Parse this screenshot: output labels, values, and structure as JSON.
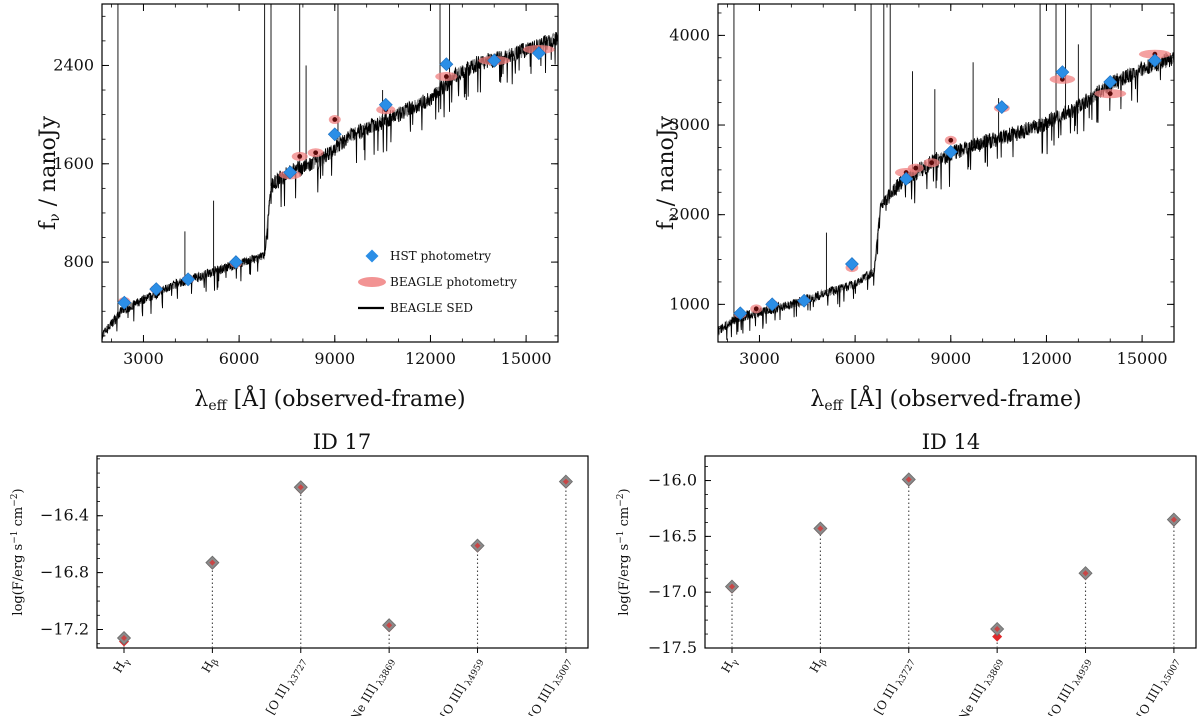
{
  "chart_data": [
    {
      "type": "scatter",
      "panel": "top-left",
      "xlabel": "λ",
      "xlabel_sub": "eff",
      "xlabel_tail": " [Å] (observed-frame)",
      "ylabel": "f",
      "ylabel_sub": "ν",
      "ylabel_tail": " / nanoJy",
      "xlim": [
        1700,
        16000
      ],
      "ylim": [
        150,
        2900
      ],
      "xticks": [
        3000,
        6000,
        9000,
        12000,
        15000
      ],
      "yticks": [
        800,
        1600,
        2400
      ],
      "legend_position": "lower-right",
      "legend": [
        "HST photometry",
        "BEAGLE photometry",
        "BEAGLE SED"
      ],
      "hst_photometry": [
        {
          "x": 2400,
          "y": 470
        },
        {
          "x": 3400,
          "y": 580
        },
        {
          "x": 4400,
          "y": 660
        },
        {
          "x": 5900,
          "y": 800
        },
        {
          "x": 7600,
          "y": 1530
        },
        {
          "x": 9000,
          "y": 1840
        },
        {
          "x": 10600,
          "y": 2080
        },
        {
          "x": 12500,
          "y": 2410
        },
        {
          "x": 14000,
          "y": 2440
        },
        {
          "x": 15400,
          "y": 2500
        }
      ],
      "beagle_photometry": [
        {
          "x": 2400,
          "y": 480,
          "w": 250
        },
        {
          "x": 3400,
          "y": 580,
          "w": 250
        },
        {
          "x": 4400,
          "y": 660,
          "w": 300
        },
        {
          "x": 5900,
          "y": 790,
          "w": 300
        },
        {
          "x": 7600,
          "y": 1510,
          "w": 700
        },
        {
          "x": 7900,
          "y": 1660,
          "w": 500
        },
        {
          "x": 8400,
          "y": 1690,
          "w": 500
        },
        {
          "x": 9000,
          "y": 1960,
          "w": 200
        },
        {
          "x": 10600,
          "y": 2040,
          "w": 600
        },
        {
          "x": 12500,
          "y": 2310,
          "w": 700
        },
        {
          "x": 14000,
          "y": 2440,
          "w": 1000
        },
        {
          "x": 15400,
          "y": 2530,
          "w": 1000
        }
      ],
      "sed": {
        "anchors": [
          [
            1700,
            200
          ],
          [
            2300,
            400
          ],
          [
            4000,
            620
          ],
          [
            6000,
            790
          ],
          [
            6800,
            850
          ],
          [
            7000,
            1420
          ],
          [
            7500,
            1520
          ],
          [
            8500,
            1620
          ],
          [
            9500,
            1830
          ],
          [
            11000,
            2000
          ],
          [
            12000,
            2130
          ],
          [
            12800,
            2320
          ],
          [
            13500,
            2420
          ],
          [
            14500,
            2480
          ],
          [
            16000,
            2620
          ]
        ],
        "lines": [
          [
            2200,
            2900
          ],
          [
            4300,
            1050
          ],
          [
            5200,
            1300
          ],
          [
            6800,
            2900
          ],
          [
            7000,
            2900
          ],
          [
            7900,
            2900
          ],
          [
            8100,
            2400
          ],
          [
            9100,
            2900
          ],
          [
            10500,
            2200
          ],
          [
            12300,
            2900
          ],
          [
            12600,
            2900
          ],
          [
            13000,
            2400
          ]
        ]
      }
    },
    {
      "type": "scatter",
      "panel": "top-right",
      "xlabel": "λ",
      "xlabel_sub": "eff",
      "xlabel_tail": " [Å] (observed-frame)",
      "ylabel": "f",
      "ylabel_sub": "ν",
      "ylabel_tail": " / nanoJy",
      "xlim": [
        1700,
        16000
      ],
      "ylim": [
        580,
        4350
      ],
      "xticks": [
        3000,
        6000,
        9000,
        12000,
        15000
      ],
      "yticks": [
        1000,
        2000,
        3000,
        4000
      ],
      "hst_photometry": [
        {
          "x": 2400,
          "y": 900
        },
        {
          "x": 3400,
          "y": 1000
        },
        {
          "x": 4400,
          "y": 1040
        },
        {
          "x": 5900,
          "y": 1450
        },
        {
          "x": 7600,
          "y": 2400
        },
        {
          "x": 9000,
          "y": 2700
        },
        {
          "x": 10600,
          "y": 3200
        },
        {
          "x": 12500,
          "y": 3590
        },
        {
          "x": 14000,
          "y": 3480
        },
        {
          "x": 15400,
          "y": 3720
        }
      ],
      "beagle_photometry": [
        {
          "x": 2400,
          "y": 890,
          "w": 250
        },
        {
          "x": 2900,
          "y": 950,
          "w": 200
        },
        {
          "x": 3400,
          "y": 1000,
          "w": 250
        },
        {
          "x": 4400,
          "y": 1040,
          "w": 300
        },
        {
          "x": 5900,
          "y": 1410,
          "w": 400
        },
        {
          "x": 7600,
          "y": 2470,
          "w": 700
        },
        {
          "x": 7900,
          "y": 2520,
          "w": 500
        },
        {
          "x": 8400,
          "y": 2580,
          "w": 500
        },
        {
          "x": 9000,
          "y": 2830,
          "w": 200
        },
        {
          "x": 10600,
          "y": 3190,
          "w": 500
        },
        {
          "x": 12500,
          "y": 3510,
          "w": 800
        },
        {
          "x": 14000,
          "y": 3350,
          "w": 1000
        },
        {
          "x": 15400,
          "y": 3790,
          "w": 1000
        }
      ],
      "sed": {
        "anchors": [
          [
            1700,
            700
          ],
          [
            2300,
            850
          ],
          [
            4000,
            1000
          ],
          [
            6000,
            1230
          ],
          [
            6600,
            1370
          ],
          [
            6800,
            2100
          ],
          [
            7500,
            2380
          ],
          [
            8500,
            2600
          ],
          [
            9500,
            2750
          ],
          [
            11000,
            2900
          ],
          [
            12000,
            3020
          ],
          [
            13000,
            3200
          ],
          [
            14000,
            3450
          ],
          [
            15000,
            3620
          ],
          [
            16000,
            3750
          ]
        ],
        "lines": [
          [
            2200,
            4350
          ],
          [
            5100,
            1800
          ],
          [
            6500,
            4350
          ],
          [
            6900,
            4350
          ],
          [
            7100,
            4350
          ],
          [
            7800,
            3600
          ],
          [
            8500,
            3400
          ],
          [
            9700,
            3700
          ],
          [
            10500,
            3300
          ],
          [
            11800,
            4350
          ],
          [
            12300,
            4350
          ],
          [
            12600,
            4350
          ],
          [
            13000,
            3900
          ],
          [
            13400,
            4350
          ]
        ]
      }
    },
    {
      "type": "scatter",
      "panel": "bottom-left",
      "title": "ID 17",
      "ylabel": "log(F/erg s",
      "ylabel_sup1": "−1",
      "ylabel_mid": " cm",
      "ylabel_sup2": "−2",
      "ylabel_tail": ")",
      "ylim": [
        -17.33,
        -15.98
      ],
      "yticks": [
        -17.2,
        -16.8,
        -16.4
      ],
      "ytick_labels": [
        "−17.2",
        "−16.8",
        "−16.4"
      ],
      "categories": [
        {
          "main": "H",
          "sub": "γ"
        },
        {
          "main": "H",
          "sub": "β"
        },
        {
          "main": "[O II]",
          "sub": " λ3727"
        },
        {
          "main": "[Ne III]",
          "sub": " λ3869"
        },
        {
          "main": "[O III]",
          "sub": " λ4959"
        },
        {
          "main": "[O III]",
          "sub": " λ5007"
        }
      ],
      "observed": [
        -17.26,
        -16.73,
        -16.2,
        -17.17,
        -16.61,
        -16.16
      ],
      "model": [
        -17.27,
        -16.73,
        -16.2,
        -17.17,
        -16.61,
        -16.16
      ]
    },
    {
      "type": "scatter",
      "panel": "bottom-right",
      "title": "ID 14",
      "ylabel": "log(F/erg s",
      "ylabel_sup1": "−1",
      "ylabel_mid": " cm",
      "ylabel_sup2": "−2",
      "ylabel_tail": ")",
      "ylim": [
        -17.5,
        -15.78
      ],
      "yticks": [
        -17.5,
        -17.0,
        -16.5,
        -16.0
      ],
      "ytick_labels": [
        "−17.5",
        "−17.0",
        "−16.5",
        "−16.0"
      ],
      "categories": [
        {
          "main": "H",
          "sub": "γ"
        },
        {
          "main": "H",
          "sub": "β"
        },
        {
          "main": "[O II]",
          "sub": " λ3727"
        },
        {
          "main": "[Ne III]",
          "sub": " λ3869"
        },
        {
          "main": "[O III]",
          "sub": " λ4959"
        },
        {
          "main": "[O III]",
          "sub": " λ5007"
        }
      ],
      "observed": [
        -16.95,
        -16.43,
        -15.99,
        -17.33,
        -16.83,
        -16.35
      ],
      "model": [
        -16.95,
        -16.43,
        -15.99,
        -17.38,
        -16.83,
        -16.35
      ]
    }
  ]
}
